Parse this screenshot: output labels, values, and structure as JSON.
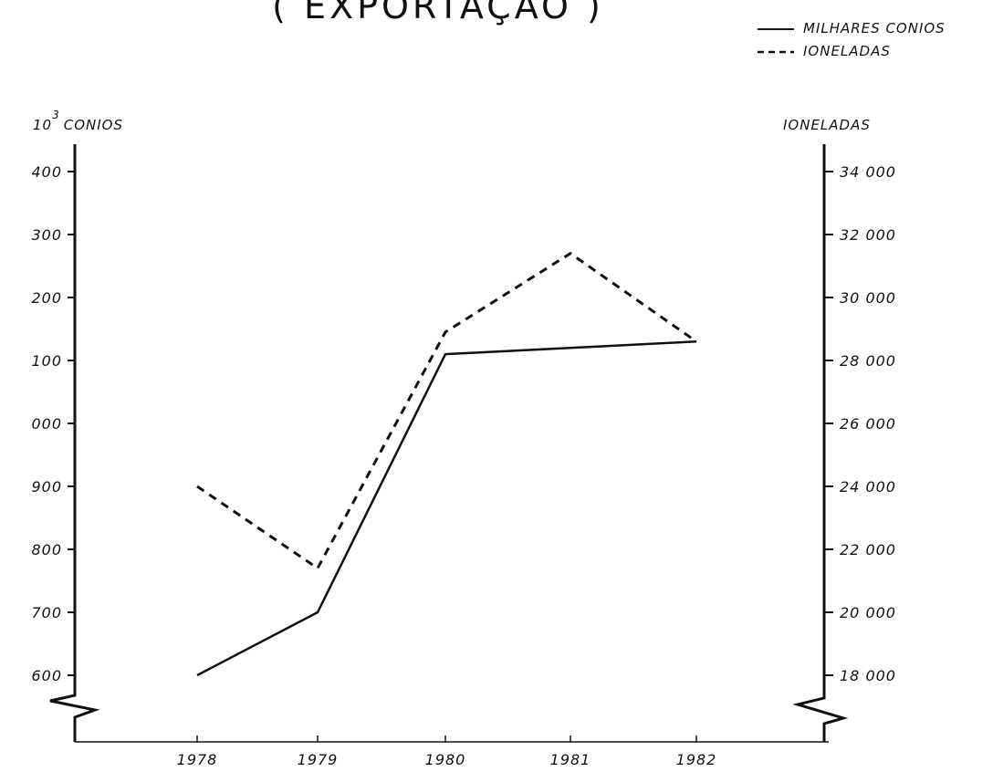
{
  "chart_data": {
    "type": "line",
    "title": "( EXPORTAÇÃO )",
    "x": [
      "1978",
      "1979",
      "1980",
      "1981",
      "1982"
    ],
    "left_axis": {
      "label_exponent": "3",
      "label_base": "10",
      "label_text": "CONIOS",
      "ticks": [
        "600",
        "700",
        "800",
        "900",
        "000",
        "100",
        "200",
        "300",
        "400"
      ],
      "tick_values": [
        600,
        700,
        800,
        900,
        1000,
        1100,
        1200,
        1300,
        1400
      ],
      "ylim": [
        600,
        1400
      ],
      "broken_axis": true
    },
    "right_axis": {
      "label": "IONELADAS",
      "ticks": [
        "18 000",
        "20 000",
        "22 000",
        "24 000",
        "26 000",
        "28 000",
        "30 000",
        "32 000",
        "34 000"
      ],
      "tick_values": [
        18000,
        20000,
        22000,
        24000,
        26000,
        28000,
        30000,
        32000,
        34000
      ],
      "ylim": [
        18000,
        34000
      ],
      "broken_axis": true
    },
    "series": [
      {
        "name": "MILHARES CONIOS",
        "axis": "left",
        "style": "solid",
        "values": [
          600,
          700,
          1110,
          1120,
          1130
        ]
      },
      {
        "name": "IONELADAS",
        "axis": "right",
        "style": "dashed",
        "values": [
          24000,
          21400,
          28900,
          31400,
          28600
        ]
      }
    ],
    "legend_position": "top-right",
    "grid": false
  }
}
